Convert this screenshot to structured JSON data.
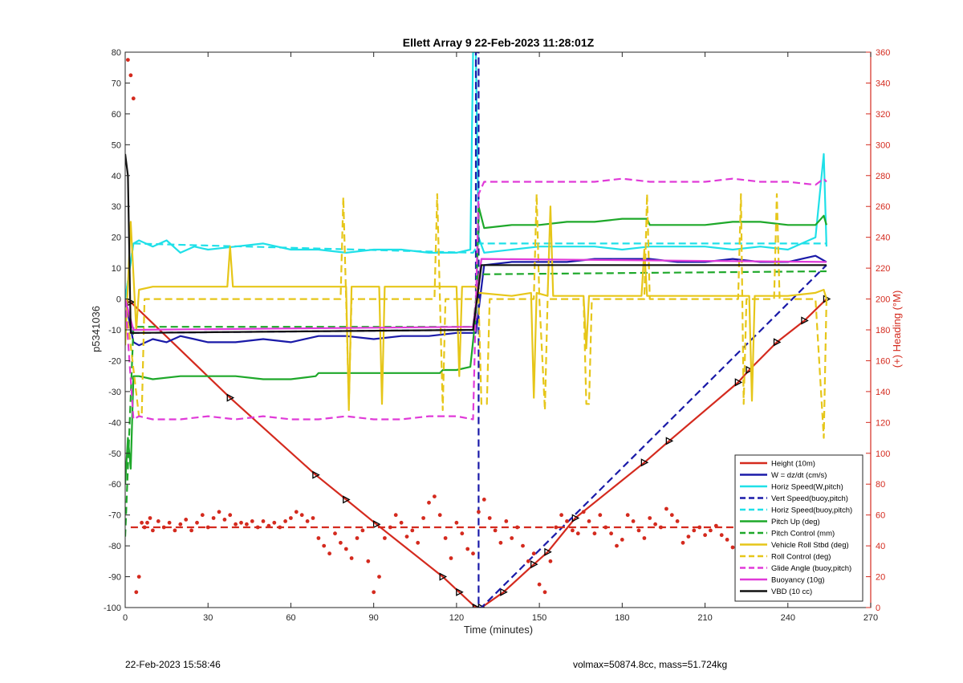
{
  "footer": {
    "left_text": "22-Feb-2023 15:58:46",
    "right_text": "volmax=50874.8cc, mass=51.724kg"
  },
  "chart_data": {
    "type": "line",
    "title": "Ellett Array 9 22-Feb-2023 11:28:01Z",
    "xlabel": "Time (minutes)",
    "ylabel": "p5341036",
    "ylabel_right": "(+) Heading (°M)",
    "xlim": [
      0,
      270
    ],
    "ylim": [
      -100,
      80
    ],
    "ylim_right": [
      0,
      360
    ],
    "xticks": [
      0,
      30,
      60,
      90,
      120,
      150,
      180,
      210,
      240,
      270
    ],
    "yticks": [
      -100,
      -90,
      -80,
      -70,
      -60,
      -50,
      -40,
      -30,
      -20,
      -10,
      0,
      10,
      20,
      30,
      40,
      50,
      60,
      70,
      80
    ],
    "yticks_right": [
      0,
      20,
      40,
      60,
      80,
      100,
      120,
      140,
      160,
      180,
      200,
      220,
      240,
      260,
      280,
      300,
      320,
      340,
      360
    ],
    "grid": false,
    "legend_position": "bottom-right",
    "colors": {
      "right_axis": "#d42a1e",
      "axes": "#262626"
    },
    "series": [
      {
        "name": "Height (10m)",
        "color": "#d42a1e",
        "style": "solid",
        "axis": "left",
        "x": [
          0,
          2,
          38,
          69,
          80,
          91,
          115,
          121,
          127,
          129,
          137,
          148,
          153,
          163,
          188,
          197,
          222,
          226,
          236,
          246,
          254
        ],
        "y": [
          -1,
          -1,
          -32,
          -57,
          -65,
          -73,
          -90,
          -95,
          -100,
          -100,
          -95,
          -86,
          -82,
          -71,
          -53,
          -46,
          -27,
          -23,
          -14,
          -7,
          0
        ]
      },
      {
        "name": "W = dz/dt (cm/s)",
        "color": "#1a1aa8",
        "style": "solid",
        "axis": "left",
        "x": [
          0,
          3,
          5,
          10,
          15,
          20,
          25,
          30,
          40,
          50,
          60,
          70,
          80,
          90,
          100,
          110,
          120,
          127,
          130,
          140,
          150,
          160,
          170,
          180,
          190,
          200,
          210,
          220,
          230,
          240,
          250,
          254
        ],
        "y": [
          0,
          -14,
          -15,
          -13,
          -14,
          -12,
          -13,
          -14,
          -14,
          -13,
          -14,
          -12,
          -12,
          -13,
          -12,
          -12,
          -11,
          -11,
          11,
          12,
          12,
          12,
          13,
          13,
          13,
          12,
          12,
          13,
          12,
          12,
          14,
          12
        ]
      },
      {
        "name": "Horiz Speed(W,pitch)",
        "color": "#1fe0e8",
        "style": "solid",
        "axis": "left",
        "x": [
          0,
          3,
          5,
          10,
          15,
          20,
          25,
          30,
          40,
          50,
          60,
          70,
          80,
          90,
          100,
          110,
          120,
          125,
          126,
          127,
          128,
          130,
          140,
          150,
          160,
          170,
          180,
          190,
          200,
          210,
          220,
          230,
          240,
          250,
          253,
          254
        ],
        "y": [
          0,
          18,
          19,
          17,
          19,
          15,
          17,
          16,
          17,
          18,
          16,
          16,
          15,
          16,
          16,
          15,
          15,
          16,
          80,
          80,
          20,
          15,
          16,
          17,
          17,
          17,
          16,
          17,
          17,
          17,
          16,
          17,
          16,
          20,
          47,
          17
        ]
      },
      {
        "name": "Vert Speed(buoy,pitch)",
        "color": "#1a1aa8",
        "style": "dashed",
        "axis": "left",
        "x": [
          0,
          3,
          126,
          127,
          127,
          128,
          128,
          129,
          254
        ],
        "y": [
          0,
          -11,
          -10,
          -10,
          80,
          80,
          -100,
          -100,
          11
        ]
      },
      {
        "name": "Horiz Speed(buoy,pitch)",
        "color": "#1fe0e8",
        "style": "dashed",
        "axis": "left",
        "x": [
          0,
          3,
          126,
          128,
          254
        ],
        "y": [
          0,
          18,
          15,
          18,
          18
        ]
      },
      {
        "name": "Pitch Up (deg)",
        "color": "#1ea82a",
        "style": "solid",
        "axis": "left",
        "x": [
          0,
          1,
          2,
          3,
          5,
          10,
          20,
          30,
          40,
          50,
          60,
          69,
          70,
          80,
          90,
          100,
          110,
          114,
          115,
          120,
          125,
          127,
          128,
          130,
          140,
          150,
          160,
          170,
          180,
          189,
          190,
          200,
          210,
          220,
          230,
          240,
          250,
          253,
          254
        ],
        "y": [
          -60,
          -45,
          -55,
          -25,
          -25,
          -26,
          -25,
          -25,
          -25,
          -26,
          -26,
          -25,
          -24,
          -24,
          -24,
          -24,
          -24,
          -24,
          -23,
          -23,
          -22,
          -5,
          30,
          23,
          24,
          24,
          25,
          25,
          26,
          26,
          24,
          24,
          24,
          25,
          25,
          24,
          24,
          27,
          24
        ]
      },
      {
        "name": "Pitch Control (mm)",
        "color": "#1ea82a",
        "style": "dashed",
        "axis": "left",
        "x": [
          0,
          3,
          126,
          128,
          254
        ],
        "y": [
          -77,
          -9,
          -9,
          8,
          9
        ]
      },
      {
        "name": "Vehicle Roll Stbd (deg)",
        "color": "#e6c619",
        "style": "solid",
        "axis": "left",
        "x": [
          0,
          2,
          4,
          5,
          10,
          37,
          38,
          39,
          40,
          80,
          81,
          82,
          90,
          92,
          93,
          94,
          95,
          120,
          121,
          122,
          124,
          127,
          128,
          140,
          147,
          148,
          149,
          153,
          154,
          155,
          166,
          167,
          168,
          187,
          188,
          189,
          220,
          226,
          227,
          228,
          235,
          240,
          250,
          253,
          254
        ],
        "y": [
          -15,
          25,
          -10,
          3,
          4,
          4,
          17,
          4,
          4,
          4,
          -36,
          4,
          4,
          4,
          -34,
          4,
          4,
          4,
          -25,
          4,
          4,
          4,
          2,
          1,
          2,
          -32,
          2,
          1,
          30,
          1,
          1,
          -16,
          1,
          1,
          16,
          1,
          1,
          1,
          -33,
          1,
          1,
          1,
          2,
          3,
          0
        ]
      },
      {
        "name": "Roll Control (deg)",
        "color": "#e6c619",
        "style": "dashed",
        "axis": "left",
        "x": [
          0,
          5,
          6,
          7,
          40,
          78,
          79,
          80,
          81,
          82,
          112,
          113,
          114,
          115,
          116,
          128,
          129,
          131,
          132,
          133,
          148,
          149,
          150,
          152,
          153,
          166,
          167,
          168,
          169,
          188,
          189,
          190,
          191,
          222,
          223,
          224,
          225,
          235,
          236,
          237,
          238,
          250,
          253,
          254
        ],
        "y": [
          0,
          -38,
          -38,
          0,
          0,
          0,
          33,
          0,
          -34,
          0,
          0,
          34,
          0,
          -36,
          0,
          0,
          -34,
          -34,
          0,
          0,
          0,
          34,
          0,
          -36,
          0,
          0,
          -34,
          -34,
          0,
          0,
          34,
          0,
          0,
          0,
          34,
          -34,
          0,
          0,
          34,
          0,
          0,
          0,
          -45,
          0
        ]
      },
      {
        "name": "Glide Angle (buoy,pitch)",
        "color": "#e03ad8",
        "style": "dashed",
        "axis": "left",
        "x": [
          0,
          3,
          5,
          10,
          20,
          30,
          40,
          50,
          60,
          70,
          80,
          90,
          100,
          110,
          120,
          126,
          128,
          130,
          140,
          150,
          160,
          170,
          180,
          190,
          200,
          210,
          220,
          230,
          240,
          250,
          253,
          254
        ],
        "y": [
          0,
          -39,
          -38,
          -39,
          -39,
          -38,
          -39,
          -38,
          -39,
          -39,
          -38,
          -39,
          -39,
          -38,
          -38,
          -39,
          34,
          38,
          38,
          38,
          38,
          38,
          39,
          38,
          38,
          38,
          39,
          38,
          38,
          37,
          39,
          38
        ]
      },
      {
        "name": "Buoyancy (10g)",
        "color": "#e03ad8",
        "style": "solid",
        "axis": "left",
        "x": [
          0,
          3,
          126,
          129,
          254
        ],
        "y": [
          0,
          -10,
          -9,
          13,
          12
        ]
      },
      {
        "name": "VBD (10 cc)",
        "color": "#111111",
        "style": "solid",
        "axis": "left",
        "x": [
          0,
          1,
          2,
          3,
          126,
          129,
          254
        ],
        "y": [
          47,
          40,
          -11,
          -11,
          -10,
          11,
          11
        ]
      },
      {
        "name": "",
        "color": "#d42a1e",
        "style": "dots",
        "axis": "right",
        "x": [
          1,
          2,
          3,
          4,
          5,
          6,
          7,
          8,
          9,
          10,
          12,
          14,
          16,
          18,
          20,
          22,
          24,
          26,
          28,
          30,
          32,
          34,
          36,
          38,
          40,
          42,
          44,
          46,
          48,
          50,
          52,
          54,
          56,
          58,
          60,
          62,
          64,
          66,
          68,
          70,
          72,
          74,
          76,
          78,
          80,
          82,
          84,
          86,
          88,
          90,
          92,
          94,
          96,
          98,
          100,
          102,
          104,
          106,
          108,
          110,
          112,
          114,
          116,
          118,
          120,
          122,
          124,
          126,
          128,
          130,
          132,
          134,
          136,
          138,
          140,
          142,
          144,
          146,
          148,
          150,
          152,
          154,
          156,
          158,
          160,
          162,
          164,
          166,
          168,
          170,
          172,
          174,
          176,
          178,
          180,
          182,
          184,
          186,
          188,
          190,
          192,
          194,
          196,
          198,
          200,
          202,
          204,
          206,
          208,
          210,
          212,
          214,
          216,
          218,
          220,
          222,
          224,
          226,
          228,
          230,
          232,
          234,
          236,
          238,
          240,
          242,
          244,
          246,
          248,
          250,
          252,
          254
        ],
        "y": [
          355,
          345,
          330,
          10,
          20,
          55,
          52,
          55,
          58,
          50,
          56,
          52,
          55,
          50,
          54,
          57,
          50,
          55,
          60,
          52,
          58,
          62,
          57,
          60,
          54,
          55,
          54,
          56,
          52,
          56,
          53,
          55,
          52,
          56,
          58,
          62,
          60,
          56,
          58,
          45,
          40,
          35,
          48,
          42,
          38,
          32,
          45,
          50,
          30,
          10,
          20,
          45,
          52,
          60,
          55,
          46,
          50,
          42,
          58,
          68,
          72,
          60,
          45,
          32,
          55,
          48,
          38,
          35,
          62,
          70,
          58,
          50,
          42,
          56,
          45,
          52,
          40,
          30,
          35,
          15,
          10,
          30,
          52,
          60,
          56,
          50,
          48,
          62,
          56,
          48,
          60,
          52,
          48,
          40,
          44,
          60,
          56,
          50,
          45,
          58,
          54,
          52,
          64,
          60,
          56,
          42,
          46,
          50,
          52,
          47,
          50,
          53,
          47,
          44,
          39,
          40,
          35,
          30,
          36,
          28,
          34,
          40,
          38,
          36,
          30,
          44,
          38,
          32,
          40,
          46,
          50,
          55
        ]
      },
      {
        "name": "",
        "color": "#d42a1e",
        "style": "dashed",
        "axis": "right",
        "x": [
          2,
          254
        ],
        "y": [
          52,
          52
        ]
      }
    ]
  }
}
